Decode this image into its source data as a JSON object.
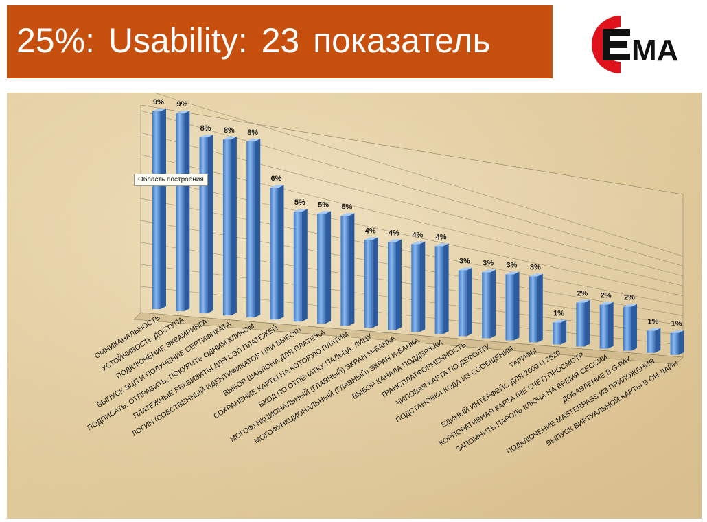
{
  "header": {
    "title": "25%:  Usability:  23  показатель",
    "logo_text": "ЕМА",
    "colors": {
      "title_bg": "#c8500e",
      "title_fg": "#ffffff",
      "logo_red": "#e0121c",
      "logo_dark": "#111111"
    }
  },
  "tooltip": {
    "label": "Область построения"
  },
  "chart_data": {
    "type": "bar",
    "style": "3d-columns",
    "grid": true,
    "legend": "none",
    "bar_color": "#5b93d6",
    "ylim": [
      0,
      10
    ],
    "unit": "%",
    "categories": [
      "ОМНИКАНАЛЬНОСТЬ",
      "УСТОЙЧИВОСТЬ ДОСТУПА",
      "ПОДКЛЮЧЕНИЕ ЭКВАЙРИНГА",
      "ВЫПУСК ЭЦП И ПОЛУЧЕНИЕ СЕРТИФИКАТА",
      "ПОДПИСАТЬ, ОТПРАВИТЬ, ПОКУРИТЬ ОДНИМ КЛИКОМ",
      "ПЛАТЕЖНЫЕ РЕКВИЗИТЫ ДЛЯ СЭП ПЛАТЕЖЕЙ",
      "ЛОГИН (СОБСТВЕННЫЙ ИДЕНТИФИКАТОР ИЛИ ВЫБОР)",
      "ВЫБОР ШАБЛОНА ДЛЯ ПЛАТЕЖА",
      "СОХРАНЕНИЕ КАРТЫ НА КОТОРУЮ ПЛАТИМ",
      "ВХОД ПО ОТПЕЧАТКУ ПАЛЬЦА, ЛИЦУ",
      "МОГОФУНКЦИОНАЛЬНЫЙ (ГЛАВНЫЙ) ЭКРАН М-БАНКА",
      "МОГОФУНКЦИОНАЛЬНЫЙ (ГЛАВНЫЙ) ЭКРАН И-БАНКА",
      "ВЫБОР КАНАЛА ПОДДЕРЖКИ",
      "ТРАНСПЛАТФОРМЕННОСТЬ",
      "ЧИПОВАЯ КАРТА ПО ДЕФОЛТУ",
      "ПОДСТАНОВКА КОДА ИЗ СООБЩЕНИЯ",
      "ТАРИФЫ",
      "ЕДИНЫЙ ИНТЕРФЕЙС ДЛЯ 2600 И 2620",
      "КОРПОРАТИВНАЯ КАРТА (НЕ СЧЕТ) ПРОСМОТР",
      "ЗАПОМНИТЬ ПАРОЛЬ КЛЮЧА НА ВРЕМЯ СЕССИИ",
      "ДОБАВЛЕНИЕ В G-PAY",
      "ПОДКЛЮЧЕНИЕ MASTERPASS ИЗ ПРИЛОЖЕНИЯ",
      "ВЫПУСК ВИРТУАЛЬНОЙ КАРТЫ В ОН-ЛАЙН"
    ],
    "values": [
      9,
      9,
      8,
      8,
      8,
      6,
      5,
      5,
      5,
      4,
      4,
      4,
      4,
      3,
      3,
      3,
      3,
      1,
      2,
      2,
      2,
      1,
      1
    ],
    "data_labels": [
      "9%",
      "9%",
      "8%",
      "8%",
      "8%",
      "6%",
      "5%",
      "5%",
      "5%",
      "4%",
      "4%",
      "4%",
      "4%",
      "3%",
      "3%",
      "3%",
      "3%",
      "1%",
      "2%",
      "2%",
      "2%",
      "1%",
      "1%"
    ]
  }
}
